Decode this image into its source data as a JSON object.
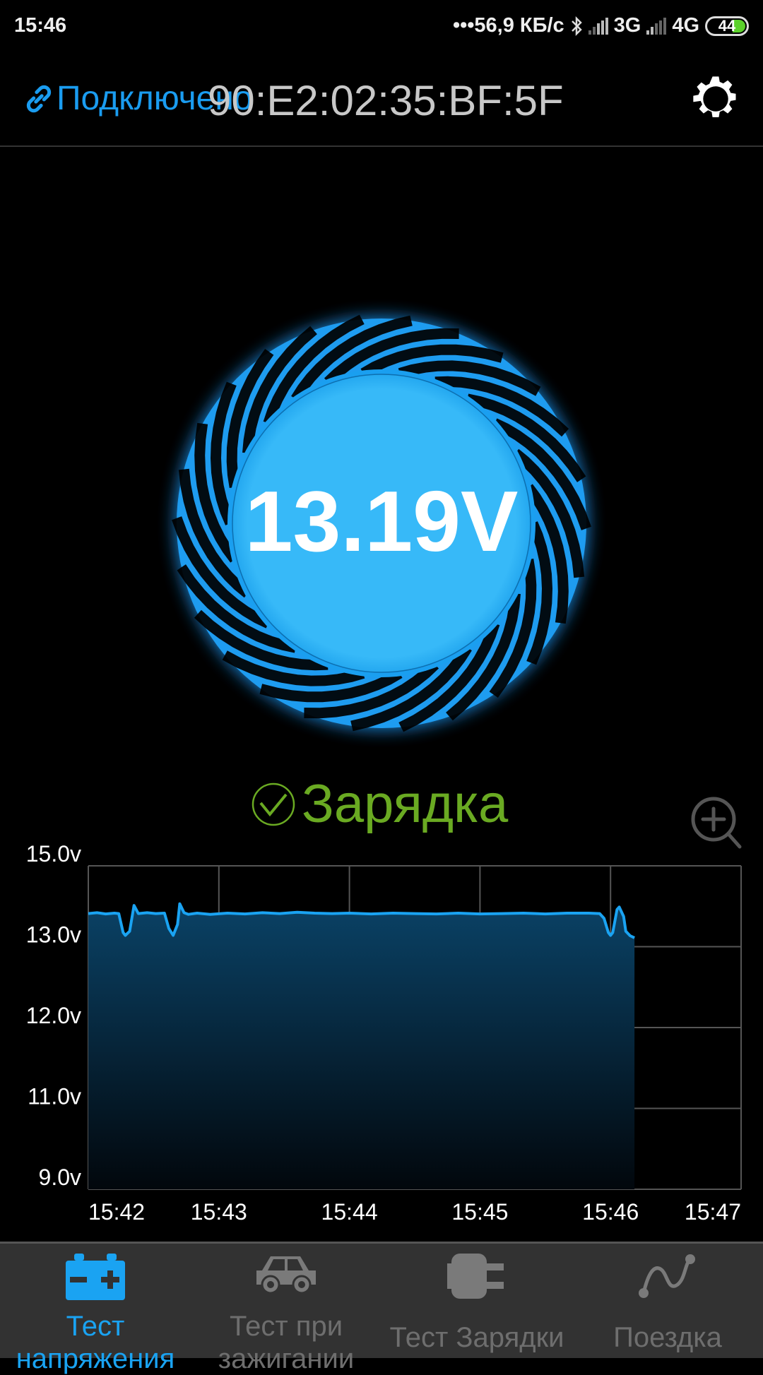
{
  "status_bar": {
    "time": "15:46",
    "network_speed": "•••56,9 КБ/с",
    "sim1": "3G",
    "sim2": "4G",
    "battery": "44",
    "icons": [
      "bluetooth-icon",
      "signal-icon",
      "battery-icon"
    ]
  },
  "header": {
    "connection_status": "Подключено",
    "device_address": "90:E2:02:35:BF:5F",
    "icons": [
      "link-icon",
      "gear-icon"
    ]
  },
  "gauge": {
    "voltage": "13.19V",
    "accent": "#33b5f5"
  },
  "state": {
    "label": "Зарядка",
    "color": "#6aaa22"
  },
  "chart_data": {
    "type": "area",
    "title": "",
    "xlabel": "",
    "ylabel": "",
    "y_ticks": [
      "15.0v",
      "13.0v",
      "12.0v",
      "11.0v",
      "9.0v"
    ],
    "y_tick_values": [
      15.0,
      13.0,
      12.0,
      11.0,
      9.0
    ],
    "x_ticks": [
      "15:42",
      "15:43",
      "15:44",
      "15:45",
      "15:46",
      "15:47"
    ],
    "xlim": [
      "15:42:00",
      "15:47:00"
    ],
    "grid": true,
    "line_color": "#1aa3f2",
    "points": [
      [
        "15:42:00",
        13.82
      ],
      [
        "15:42:04",
        13.84
      ],
      [
        "15:42:08",
        13.81
      ],
      [
        "15:42:12",
        13.83
      ],
      [
        "15:42:14",
        13.82
      ],
      [
        "15:42:16",
        13.35
      ],
      [
        "15:42:17",
        13.28
      ],
      [
        "15:42:19",
        13.38
      ],
      [
        "15:42:21",
        14.02
      ],
      [
        "15:42:23",
        13.82
      ],
      [
        "15:42:27",
        13.84
      ],
      [
        "15:42:31",
        13.82
      ],
      [
        "15:42:35",
        13.83
      ],
      [
        "15:42:37",
        13.45
      ],
      [
        "15:42:39",
        13.28
      ],
      [
        "15:42:41",
        13.55
      ],
      [
        "15:42:42",
        14.06
      ],
      [
        "15:42:44",
        13.84
      ],
      [
        "15:42:46",
        13.8
      ],
      [
        "15:42:50",
        13.83
      ],
      [
        "15:42:56",
        13.8
      ],
      [
        "15:43:04",
        13.83
      ],
      [
        "15:43:12",
        13.81
      ],
      [
        "15:43:20",
        13.84
      ],
      [
        "15:43:28",
        13.82
      ],
      [
        "15:43:36",
        13.85
      ],
      [
        "15:43:44",
        13.83
      ],
      [
        "15:43:52",
        13.82
      ],
      [
        "15:44:00",
        13.83
      ],
      [
        "15:44:10",
        13.81
      ],
      [
        "15:44:20",
        13.83
      ],
      [
        "15:44:30",
        13.82
      ],
      [
        "15:44:40",
        13.81
      ],
      [
        "15:44:50",
        13.83
      ],
      [
        "15:45:00",
        13.81
      ],
      [
        "15:45:10",
        13.82
      ],
      [
        "15:45:20",
        13.83
      ],
      [
        "15:45:30",
        13.81
      ],
      [
        "15:45:40",
        13.83
      ],
      [
        "15:45:50",
        13.83
      ],
      [
        "15:45:55",
        13.82
      ],
      [
        "15:45:57",
        13.7
      ],
      [
        "15:45:59",
        13.35
      ],
      [
        "15:46:00",
        13.28
      ],
      [
        "15:46:01",
        13.35
      ],
      [
        "15:46:03",
        13.92
      ],
      [
        "15:46:04",
        13.98
      ],
      [
        "15:46:06",
        13.75
      ],
      [
        "15:46:07",
        13.38
      ],
      [
        "15:46:09",
        13.27
      ],
      [
        "15:46:11",
        13.22
      ]
    ]
  },
  "chart_controls": {
    "icons": [
      "zoom-in-icon"
    ]
  },
  "bottom_nav": {
    "items": [
      {
        "label_line1": "Тест",
        "label_line2": "напряжения",
        "icon": "battery-icon",
        "active": true
      },
      {
        "label_line1": "Тест при",
        "label_line2": "зажигании",
        "icon": "car-icon",
        "active": false
      },
      {
        "label_line1": "Тест Зарядки",
        "icon": "plug-icon",
        "active": false
      },
      {
        "label_line1": "Поездка",
        "icon": "route-icon",
        "active": false
      }
    ],
    "active_color": "#1aa3f2",
    "inactive_color": "#6e6e6e"
  }
}
